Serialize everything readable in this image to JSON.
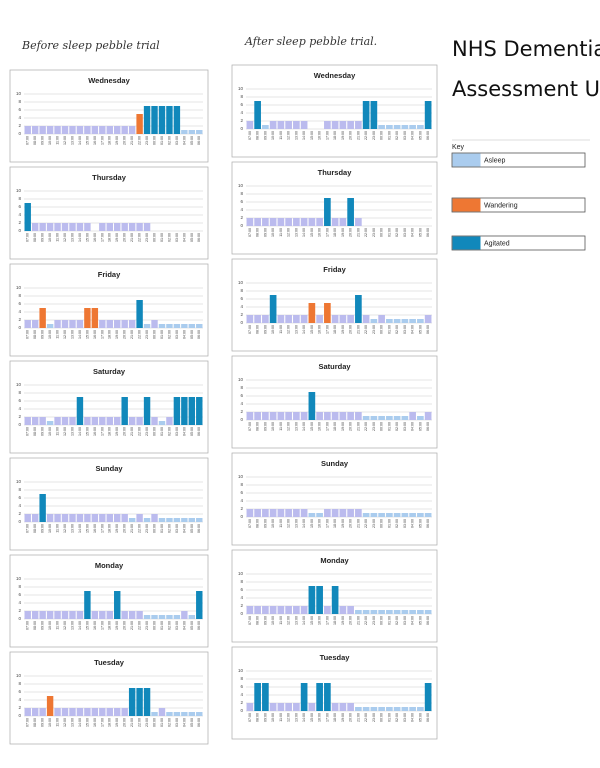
{
  "header": {
    "before": "Before sleep pebble trial",
    "after": "After sleep pebble trial.",
    "title_line1": "NHS Dementia",
    "title_line2": "Assessment Unit"
  },
  "key": {
    "title": "Key",
    "items": [
      {
        "label": "Asleep",
        "color": "#ace"
      },
      {
        "label": "Wandering",
        "color": "#e73"
      },
      {
        "label": "Agitated",
        "color": "#18b"
      }
    ]
  },
  "chart_data": [
    {
      "type": "bar",
      "title": "Wednesday",
      "categories": [
        "07:00",
        "08:00",
        "09:00",
        "10:00",
        "11:00",
        "12:00",
        "13:00",
        "14:00",
        "15:00",
        "16:00",
        "17:00",
        "18:00",
        "19:00",
        "20:00",
        "21:00",
        "22:00",
        "23:00",
        "00:00",
        "01:00",
        "02:00",
        "03:00",
        "04:00",
        "05:00",
        "06:00"
      ],
      "values": [
        2,
        2,
        2,
        2,
        2,
        2,
        2,
        2,
        2,
        2,
        2,
        2,
        2,
        2,
        2,
        5,
        7,
        7,
        7,
        7,
        7,
        1,
        1,
        1
      ],
      "colors": [
        "#bbe",
        "#bbe",
        "#bbe",
        "#bbe",
        "#bbe",
        "#bbe",
        "#bbe",
        "#bbe",
        "#bbe",
        "#bbe",
        "#bbe",
        "#bbe",
        "#bbe",
        "#bbe",
        "#bbe",
        "#e73",
        "#18b",
        "#18b",
        "#18b",
        "#18b",
        "#18b",
        "#ace",
        "#ace",
        "#ace"
      ],
      "ylim": [
        0,
        10
      ],
      "yticks": [
        0,
        2,
        4,
        6,
        8,
        10
      ],
      "grid": true
    },
    {
      "type": "bar",
      "title": "Thursday",
      "categories": [
        "07:00",
        "08:00",
        "09:00",
        "10:00",
        "11:00",
        "12:00",
        "13:00",
        "14:00",
        "15:00",
        "16:00",
        "17:00",
        "18:00",
        "19:00",
        "20:00",
        "21:00",
        "22:00",
        "23:00",
        "00:00",
        "01:00",
        "02:00",
        "03:00",
        "04:00",
        "05:00",
        "06:00"
      ],
      "values": [
        7,
        2,
        2,
        2,
        2,
        2,
        2,
        2,
        2,
        0,
        2,
        2,
        2,
        2,
        2,
        2,
        2,
        0,
        0,
        0,
        0,
        0,
        0,
        0
      ],
      "colors": [
        "#18b",
        "#bbe",
        "#bbe",
        "#bbe",
        "#bbe",
        "#bbe",
        "#bbe",
        "#bbe",
        "#bbe",
        "#bbe",
        "#bbe",
        "#bbe",
        "#bbe",
        "#bbe",
        "#bbe",
        "#bbe",
        "#bbe",
        "#bbe",
        "#bbe",
        "#bbe",
        "#bbe",
        "#bbe",
        "#bbe",
        "#bbe"
      ],
      "ylim": [
        0,
        10
      ],
      "yticks": [
        0,
        2,
        4,
        6,
        8,
        10
      ],
      "grid": true
    },
    {
      "type": "bar",
      "title": "Friday",
      "categories": [
        "07:00",
        "08:00",
        "09:00",
        "10:00",
        "11:00",
        "12:00",
        "13:00",
        "14:00",
        "15:00",
        "16:00",
        "17:00",
        "18:00",
        "19:00",
        "20:00",
        "21:00",
        "22:00",
        "23:00",
        "00:00",
        "01:00",
        "02:00",
        "03:00",
        "04:00",
        "05:00",
        "06:00"
      ],
      "values": [
        2,
        2,
        5,
        1,
        2,
        2,
        2,
        2,
        5,
        5,
        2,
        2,
        2,
        2,
        2,
        7,
        1,
        2,
        1,
        1,
        1,
        1,
        1,
        1
      ],
      "colors": [
        "#bbe",
        "#bbe",
        "#e73",
        "#ace",
        "#bbe",
        "#bbe",
        "#bbe",
        "#bbe",
        "#e73",
        "#e73",
        "#bbe",
        "#bbe",
        "#bbe",
        "#bbe",
        "#bbe",
        "#18b",
        "#ace",
        "#bbe",
        "#ace",
        "#ace",
        "#ace",
        "#ace",
        "#ace",
        "#ace"
      ],
      "ylim": [
        0,
        10
      ],
      "yticks": [
        0,
        2,
        4,
        6,
        8,
        10
      ],
      "grid": true
    },
    {
      "type": "bar",
      "title": "Saturday",
      "categories": [
        "07:00",
        "08:00",
        "09:00",
        "10:00",
        "11:00",
        "12:00",
        "13:00",
        "14:00",
        "15:00",
        "16:00",
        "17:00",
        "18:00",
        "19:00",
        "20:00",
        "21:00",
        "22:00",
        "23:00",
        "00:00",
        "01:00",
        "02:00",
        "03:00",
        "04:00",
        "05:00",
        "06:00"
      ],
      "values": [
        2,
        2,
        2,
        1,
        2,
        2,
        2,
        7,
        2,
        2,
        2,
        2,
        2,
        7,
        2,
        2,
        7,
        2,
        1,
        2,
        7,
        7,
        7,
        7
      ],
      "colors": [
        "#bbe",
        "#bbe",
        "#bbe",
        "#ace",
        "#bbe",
        "#bbe",
        "#bbe",
        "#18b",
        "#bbe",
        "#bbe",
        "#bbe",
        "#bbe",
        "#bbe",
        "#18b",
        "#bbe",
        "#bbe",
        "#18b",
        "#bbe",
        "#ace",
        "#bbe",
        "#18b",
        "#18b",
        "#18b",
        "#18b"
      ],
      "ylim": [
        0,
        10
      ],
      "yticks": [
        0,
        2,
        4,
        6,
        8,
        10
      ],
      "grid": true
    },
    {
      "type": "bar",
      "title": "Sunday",
      "categories": [
        "07:00",
        "08:00",
        "09:00",
        "10:00",
        "11:00",
        "12:00",
        "13:00",
        "14:00",
        "15:00",
        "16:00",
        "17:00",
        "18:00",
        "19:00",
        "20:00",
        "21:00",
        "22:00",
        "23:00",
        "00:00",
        "01:00",
        "02:00",
        "03:00",
        "04:00",
        "05:00",
        "06:00"
      ],
      "values": [
        2,
        2,
        7,
        2,
        2,
        2,
        2,
        2,
        2,
        2,
        2,
        2,
        2,
        2,
        1,
        2,
        1,
        2,
        1,
        1,
        1,
        1,
        1,
        1
      ],
      "colors": [
        "#bbe",
        "#bbe",
        "#18b",
        "#bbe",
        "#bbe",
        "#bbe",
        "#bbe",
        "#bbe",
        "#bbe",
        "#bbe",
        "#bbe",
        "#bbe",
        "#bbe",
        "#bbe",
        "#ace",
        "#bbe",
        "#ace",
        "#bbe",
        "#ace",
        "#ace",
        "#ace",
        "#ace",
        "#ace",
        "#ace"
      ],
      "ylim": [
        0,
        10
      ],
      "yticks": [
        0,
        2,
        4,
        6,
        8,
        10
      ],
      "grid": true
    },
    {
      "type": "bar",
      "title": "Monday",
      "categories": [
        "07:00",
        "08:00",
        "09:00",
        "10:00",
        "11:00",
        "12:00",
        "13:00",
        "14:00",
        "15:00",
        "16:00",
        "17:00",
        "18:00",
        "19:00",
        "20:00",
        "21:00",
        "22:00",
        "23:00",
        "00:00",
        "01:00",
        "02:00",
        "03:00",
        "04:00",
        "05:00",
        "06:00"
      ],
      "values": [
        2,
        2,
        2,
        2,
        2,
        2,
        2,
        2,
        7,
        2,
        2,
        2,
        7,
        2,
        2,
        2,
        1,
        1,
        1,
        1,
        1,
        2,
        1,
        7
      ],
      "colors": [
        "#bbe",
        "#bbe",
        "#bbe",
        "#bbe",
        "#bbe",
        "#bbe",
        "#bbe",
        "#bbe",
        "#18b",
        "#bbe",
        "#bbe",
        "#bbe",
        "#18b",
        "#bbe",
        "#bbe",
        "#bbe",
        "#ace",
        "#ace",
        "#ace",
        "#ace",
        "#ace",
        "#bbe",
        "#ace",
        "#18b"
      ],
      "ylim": [
        0,
        10
      ],
      "yticks": [
        0,
        2,
        4,
        6,
        8,
        10
      ],
      "grid": true
    },
    {
      "type": "bar",
      "title": "Tuesday",
      "categories": [
        "07:00",
        "08:00",
        "09:00",
        "10:00",
        "11:00",
        "12:00",
        "13:00",
        "14:00",
        "15:00",
        "16:00",
        "17:00",
        "18:00",
        "19:00",
        "20:00",
        "21:00",
        "22:00",
        "23:00",
        "00:00",
        "01:00",
        "02:00",
        "03:00",
        "04:00",
        "05:00",
        "06:00"
      ],
      "values": [
        2,
        2,
        2,
        5,
        2,
        2,
        2,
        2,
        2,
        2,
        2,
        2,
        2,
        2,
        7,
        7,
        7,
        1,
        2,
        1,
        1,
        1,
        1,
        1
      ],
      "colors": [
        "#bbe",
        "#bbe",
        "#bbe",
        "#e73",
        "#bbe",
        "#bbe",
        "#bbe",
        "#bbe",
        "#bbe",
        "#bbe",
        "#bbe",
        "#bbe",
        "#bbe",
        "#bbe",
        "#18b",
        "#18b",
        "#18b",
        "#ace",
        "#bbe",
        "#ace",
        "#ace",
        "#ace",
        "#ace",
        "#ace"
      ],
      "ylim": [
        0,
        10
      ],
      "yticks": [
        0,
        2,
        4,
        6,
        8,
        10
      ],
      "grid": true
    },
    {
      "type": "bar",
      "title": "Wednesday",
      "categories": [
        "07:00",
        "08:00",
        "09:00",
        "10:00",
        "11:00",
        "12:00",
        "13:00",
        "14:00",
        "15:00",
        "16:00",
        "17:00",
        "18:00",
        "19:00",
        "20:00",
        "21:00",
        "22:00",
        "23:00",
        "00:00",
        "01:00",
        "02:00",
        "03:00",
        "04:00",
        "05:00",
        "06:00"
      ],
      "values": [
        2,
        7,
        1,
        2,
        2,
        2,
        2,
        2,
        0,
        0,
        2,
        2,
        2,
        2,
        2,
        7,
        7,
        1,
        1,
        1,
        1,
        1,
        1,
        7
      ],
      "colors": [
        "#bbe",
        "#18b",
        "#ace",
        "#bbe",
        "#bbe",
        "#bbe",
        "#bbe",
        "#bbe",
        "#bbe",
        "#bbe",
        "#bbe",
        "#bbe",
        "#bbe",
        "#bbe",
        "#bbe",
        "#18b",
        "#18b",
        "#ace",
        "#ace",
        "#ace",
        "#ace",
        "#ace",
        "#ace",
        "#18b"
      ],
      "ylim": [
        0,
        10
      ],
      "yticks": [
        0,
        2,
        4,
        6,
        8,
        10
      ],
      "grid": true
    },
    {
      "type": "bar",
      "title": "Thursday",
      "categories": [
        "07:00",
        "08:00",
        "09:00",
        "10:00",
        "11:00",
        "12:00",
        "13:00",
        "14:00",
        "15:00",
        "16:00",
        "17:00",
        "18:00",
        "19:00",
        "20:00",
        "21:00",
        "22:00",
        "23:00",
        "00:00",
        "01:00",
        "02:00",
        "03:00",
        "04:00",
        "05:00",
        "06:00"
      ],
      "values": [
        2,
        2,
        2,
        2,
        2,
        2,
        2,
        2,
        2,
        2,
        7,
        2,
        2,
        7,
        2,
        0,
        0,
        0,
        0,
        0,
        0,
        0,
        0,
        0
      ],
      "colors": [
        "#bbe",
        "#bbe",
        "#bbe",
        "#bbe",
        "#bbe",
        "#bbe",
        "#bbe",
        "#bbe",
        "#bbe",
        "#bbe",
        "#18b",
        "#bbe",
        "#bbe",
        "#18b",
        "#bbe",
        "#bbe",
        "#bbe",
        "#bbe",
        "#bbe",
        "#bbe",
        "#bbe",
        "#bbe",
        "#bbe",
        "#bbe"
      ],
      "ylim": [
        0,
        10
      ],
      "yticks": [
        0,
        2,
        4,
        6,
        8,
        10
      ],
      "grid": true
    },
    {
      "type": "bar",
      "title": "Friday",
      "categories": [
        "07:00",
        "08:00",
        "09:00",
        "10:00",
        "11:00",
        "12:00",
        "13:00",
        "14:00",
        "15:00",
        "16:00",
        "17:00",
        "18:00",
        "19:00",
        "20:00",
        "21:00",
        "22:00",
        "23:00",
        "00:00",
        "01:00",
        "02:00",
        "03:00",
        "04:00",
        "05:00",
        "06:00"
      ],
      "values": [
        2,
        2,
        2,
        7,
        2,
        2,
        2,
        2,
        5,
        2,
        5,
        2,
        2,
        2,
        7,
        2,
        1,
        2,
        1,
        1,
        1,
        1,
        1,
        2
      ],
      "colors": [
        "#bbe",
        "#bbe",
        "#bbe",
        "#18b",
        "#bbe",
        "#bbe",
        "#bbe",
        "#bbe",
        "#e73",
        "#bbe",
        "#e73",
        "#bbe",
        "#bbe",
        "#bbe",
        "#18b",
        "#bbe",
        "#ace",
        "#bbe",
        "#ace",
        "#ace",
        "#ace",
        "#ace",
        "#ace",
        "#bbe"
      ],
      "ylim": [
        0,
        10
      ],
      "yticks": [
        0,
        2,
        4,
        6,
        8,
        10
      ],
      "grid": true
    },
    {
      "type": "bar",
      "title": "Saturday",
      "categories": [
        "07:00",
        "08:00",
        "09:00",
        "10:00",
        "11:00",
        "12:00",
        "13:00",
        "14:00",
        "15:00",
        "16:00",
        "17:00",
        "18:00",
        "19:00",
        "20:00",
        "21:00",
        "22:00",
        "23:00",
        "00:00",
        "01:00",
        "02:00",
        "03:00",
        "04:00",
        "05:00",
        "06:00"
      ],
      "values": [
        2,
        2,
        2,
        2,
        2,
        2,
        2,
        2,
        7,
        2,
        2,
        2,
        2,
        2,
        2,
        1,
        1,
        1,
        1,
        1,
        1,
        2,
        1,
        2
      ],
      "colors": [
        "#bbe",
        "#bbe",
        "#bbe",
        "#bbe",
        "#bbe",
        "#bbe",
        "#bbe",
        "#bbe",
        "#18b",
        "#bbe",
        "#bbe",
        "#bbe",
        "#bbe",
        "#bbe",
        "#bbe",
        "#ace",
        "#ace",
        "#ace",
        "#ace",
        "#ace",
        "#ace",
        "#bbe",
        "#ace",
        "#bbe"
      ],
      "ylim": [
        0,
        10
      ],
      "yticks": [
        0,
        2,
        4,
        6,
        8,
        10
      ],
      "grid": true
    },
    {
      "type": "bar",
      "title": "Sunday",
      "categories": [
        "07:00",
        "08:00",
        "09:00",
        "10:00",
        "11:00",
        "12:00",
        "13:00",
        "14:00",
        "15:00",
        "16:00",
        "17:00",
        "18:00",
        "19:00",
        "20:00",
        "21:00",
        "22:00",
        "23:00",
        "00:00",
        "01:00",
        "02:00",
        "03:00",
        "04:00",
        "05:00",
        "06:00"
      ],
      "values": [
        2,
        2,
        2,
        2,
        2,
        2,
        2,
        2,
        1,
        1,
        2,
        2,
        2,
        2,
        2,
        1,
        1,
        1,
        1,
        1,
        1,
        1,
        1,
        1
      ],
      "colors": [
        "#bbe",
        "#bbe",
        "#bbe",
        "#bbe",
        "#bbe",
        "#bbe",
        "#bbe",
        "#bbe",
        "#ace",
        "#ace",
        "#bbe",
        "#bbe",
        "#bbe",
        "#bbe",
        "#bbe",
        "#ace",
        "#ace",
        "#ace",
        "#ace",
        "#ace",
        "#ace",
        "#ace",
        "#ace",
        "#ace"
      ],
      "ylim": [
        0,
        10
      ],
      "yticks": [
        0,
        2,
        4,
        6,
        8,
        10
      ],
      "grid": true
    },
    {
      "type": "bar",
      "title": "Monday",
      "categories": [
        "07:00",
        "08:00",
        "09:00",
        "10:00",
        "11:00",
        "12:00",
        "13:00",
        "14:00",
        "15:00",
        "16:00",
        "17:00",
        "18:00",
        "19:00",
        "20:00",
        "21:00",
        "22:00",
        "23:00",
        "00:00",
        "01:00",
        "02:00",
        "03:00",
        "04:00",
        "05:00",
        "06:00"
      ],
      "values": [
        2,
        2,
        2,
        2,
        2,
        2,
        2,
        2,
        7,
        7,
        2,
        7,
        2,
        2,
        1,
        1,
        1,
        1,
        1,
        1,
        1,
        1,
        1,
        1
      ],
      "colors": [
        "#bbe",
        "#bbe",
        "#bbe",
        "#bbe",
        "#bbe",
        "#bbe",
        "#bbe",
        "#bbe",
        "#18b",
        "#18b",
        "#bbe",
        "#18b",
        "#bbe",
        "#bbe",
        "#ace",
        "#ace",
        "#ace",
        "#ace",
        "#ace",
        "#ace",
        "#ace",
        "#ace",
        "#ace",
        "#ace"
      ],
      "ylim": [
        0,
        10
      ],
      "yticks": [
        0,
        2,
        4,
        6,
        8,
        10
      ],
      "grid": true
    },
    {
      "type": "bar",
      "title": "Tuesday",
      "categories": [
        "07:00",
        "08:00",
        "09:00",
        "10:00",
        "11:00",
        "12:00",
        "13:00",
        "14:00",
        "15:00",
        "16:00",
        "17:00",
        "18:00",
        "19:00",
        "20:00",
        "21:00",
        "22:00",
        "23:00",
        "00:00",
        "01:00",
        "02:00",
        "03:00",
        "04:00",
        "05:00",
        "06:00"
      ],
      "values": [
        2,
        7,
        7,
        2,
        2,
        2,
        2,
        7,
        2,
        7,
        7,
        2,
        2,
        2,
        1,
        1,
        1,
        1,
        1,
        1,
        1,
        1,
        1,
        7
      ],
      "colors": [
        "#bbe",
        "#18b",
        "#18b",
        "#bbe",
        "#bbe",
        "#bbe",
        "#bbe",
        "#18b",
        "#bbe",
        "#18b",
        "#18b",
        "#bbe",
        "#bbe",
        "#bbe",
        "#ace",
        "#ace",
        "#ace",
        "#ace",
        "#ace",
        "#ace",
        "#ace",
        "#ace",
        "#ace",
        "#18b"
      ],
      "ylim": [
        0,
        10
      ],
      "yticks": [
        0,
        2,
        4,
        6,
        8,
        10
      ],
      "grid": true
    }
  ]
}
